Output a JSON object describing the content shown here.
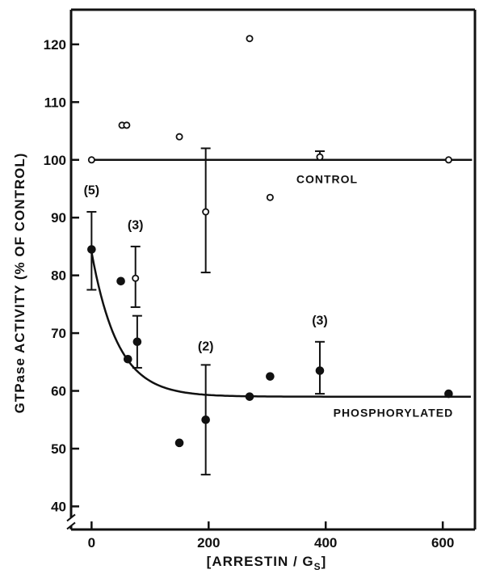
{
  "chart_data": {
    "type": "scatter",
    "xlabel": "[ARRESTIN / G",
    "xlabel_sub": "S",
    "xlabel_close": "]",
    "ylabel": "GTPase ACTIVITY (% OF CONTROL)",
    "xlim": [
      -35,
      655
    ],
    "ylim": [
      36,
      126
    ],
    "x_ticks": [
      0,
      200,
      400,
      600
    ],
    "y_ticks": [
      40,
      50,
      60,
      70,
      80,
      90,
      100,
      110,
      120
    ],
    "axis_break": "y-axis break below 40",
    "grid": false,
    "series": [
      {
        "name": "CONTROL",
        "marker": "open-circle",
        "points": [
          {
            "x": 0,
            "y": 100
          },
          {
            "x": 52,
            "y": 106
          },
          {
            "x": 60,
            "y": 106
          },
          {
            "x": 75,
            "y": 79.5,
            "err_low": 74.5,
            "err_high": 85
          },
          {
            "x": 150,
            "y": 104
          },
          {
            "x": 195,
            "y": 91,
            "err_low": 80.5,
            "err_high": 102
          },
          {
            "x": 270,
            "y": 121
          },
          {
            "x": 305,
            "y": 93.5
          },
          {
            "x": 390,
            "y": 100.5,
            "err_low": 100,
            "err_high": 101.5
          },
          {
            "x": 610,
            "y": 100
          }
        ],
        "fit_line": {
          "type": "constant",
          "value": 100,
          "x_range": [
            0,
            650
          ]
        }
      },
      {
        "name": "PHOSPHORYLATED",
        "marker": "filled-circle",
        "points": [
          {
            "x": 0,
            "y": 84.5,
            "err_low": 77.5,
            "err_high": 91
          },
          {
            "x": 50,
            "y": 79
          },
          {
            "x": 62,
            "y": 65.5
          },
          {
            "x": 78,
            "y": 68.5,
            "err_low": 64,
            "err_high": 73
          },
          {
            "x": 150,
            "y": 51
          },
          {
            "x": 195,
            "y": 55,
            "err_low": 45.5,
            "err_high": 64.5
          },
          {
            "x": 270,
            "y": 59
          },
          {
            "x": 305,
            "y": 62.5
          },
          {
            "x": 390,
            "y": 63.5,
            "err_low": 59.5,
            "err_high": 68.5
          },
          {
            "x": 610,
            "y": 59.5
          }
        ],
        "fit_line": {
          "type": "exponential-decay",
          "start": 84,
          "plateau": 59,
          "rate": 45,
          "x_range": [
            0,
            650
          ]
        }
      }
    ],
    "annotations": [
      {
        "text": "(5)",
        "x": 0,
        "y": 94
      },
      {
        "text": "(3)",
        "x": 75,
        "y": 88
      },
      {
        "text": "(2)",
        "x": 195,
        "y": 67
      },
      {
        "text": "(3)",
        "x": 390,
        "y": 71.5
      }
    ]
  }
}
